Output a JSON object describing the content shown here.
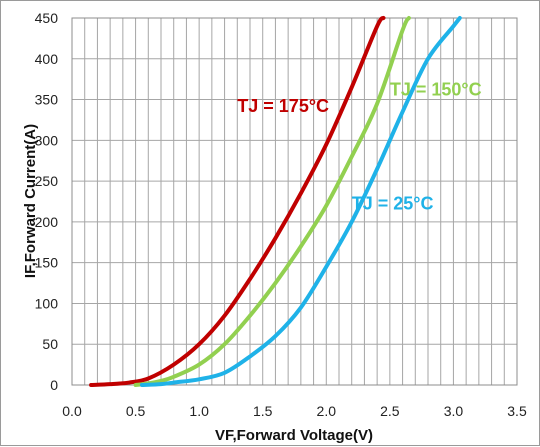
{
  "chart_data": {
    "type": "line",
    "title": "",
    "xlabel": "VF,Forward Voltage(V)",
    "ylabel": "IF,Forward Current(A)",
    "xlim": [
      0,
      3.5
    ],
    "ylim": [
      0,
      450
    ],
    "x_ticks": [
      "0.0",
      "0.5",
      "1.0",
      "1.5",
      "2.0",
      "2.5",
      "3.0",
      "3.5"
    ],
    "y_ticks": [
      "0",
      "50",
      "100",
      "150",
      "200",
      "250",
      "300",
      "350",
      "400",
      "450"
    ],
    "grid": true,
    "legend": "none",
    "series": [
      {
        "name": "TJ = 175°C",
        "color": "#c00000",
        "x": [
          0.15,
          0.3,
          0.45,
          0.6,
          0.8,
          1.0,
          1.2,
          1.4,
          1.6,
          1.8,
          2.0,
          2.2,
          2.4,
          2.45
        ],
        "y": [
          0,
          1,
          3,
          8,
          25,
          50,
          85,
          130,
          180,
          235,
          295,
          365,
          440,
          450
        ]
      },
      {
        "name": "TJ = 150°C",
        "color": "#92d050",
        "x": [
          0.5,
          0.6,
          0.7,
          0.8,
          1.0,
          1.2,
          1.4,
          1.6,
          1.8,
          2.0,
          2.2,
          2.4,
          2.6,
          2.65
        ],
        "y": [
          0,
          2,
          5,
          10,
          25,
          50,
          85,
          125,
          170,
          220,
          280,
          345,
          435,
          450
        ]
      },
      {
        "name": "TJ = 25°C",
        "color": "#1fb2e8",
        "x": [
          0.55,
          0.7,
          0.8,
          1.0,
          1.2,
          1.4,
          1.6,
          1.8,
          2.0,
          2.2,
          2.4,
          2.6,
          2.8,
          3.0,
          3.05
        ],
        "y": [
          0,
          1,
          3,
          7,
          15,
          35,
          60,
          95,
          145,
          200,
          265,
          335,
          400,
          440,
          450
        ]
      }
    ],
    "labels": [
      {
        "text": "TJ = 175°C",
        "color": "#c00000",
        "x": 1.3,
        "y": 335
      },
      {
        "text": "TJ = 150°C",
        "color": "#92d050",
        "x": 2.5,
        "y": 355
      },
      {
        "text": "TJ = 25°C",
        "color": "#1fb2e8",
        "x": 2.2,
        "y": 215
      }
    ]
  }
}
